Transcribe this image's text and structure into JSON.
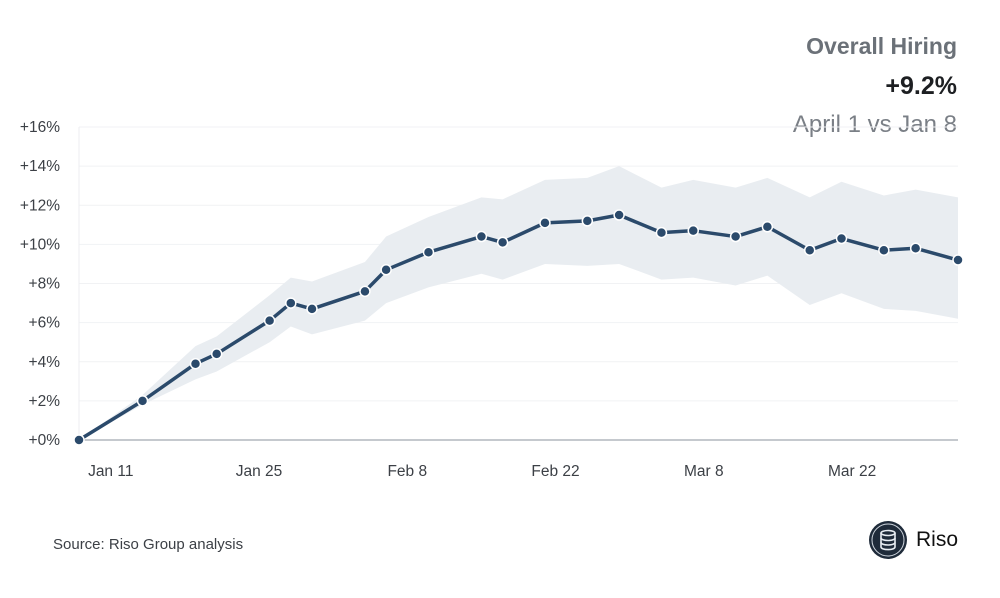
{
  "header": {
    "title": "Overall Hiring",
    "value": "+9.2%",
    "subtitle": "April 1 vs Jan 8"
  },
  "footer": {
    "source": "Source: Riso Group analysis",
    "brand": "Riso"
  },
  "chart_data": {
    "type": "line",
    "title": "Overall Hiring",
    "x": [
      "2021-01-08",
      "2021-01-14",
      "2021-01-19",
      "2021-01-21",
      "2021-01-26",
      "2021-01-28",
      "2021-01-30",
      "2021-02-04",
      "2021-02-06",
      "2021-02-10",
      "2021-02-15",
      "2021-02-17",
      "2021-02-21",
      "2021-02-25",
      "2021-02-28",
      "2021-03-04",
      "2021-03-07",
      "2021-03-11",
      "2021-03-14",
      "2021-03-18",
      "2021-03-21",
      "2021-03-25",
      "2021-03-28",
      "2021-04-01"
    ],
    "series": [
      {
        "values": [
          0,
          2.0,
          3.9,
          4.4,
          6.1,
          7.0,
          6.7,
          7.6,
          8.7,
          9.6,
          10.4,
          10.1,
          11.1,
          11.2,
          11.5,
          10.6,
          10.7,
          10.4,
          10.9,
          9.7,
          10.3,
          9.7,
          9.8,
          9.2
        ]
      }
    ],
    "band": {
      "upper": [
        0,
        2.3,
        4.8,
        5.3,
        7.4,
        8.3,
        8.1,
        9.1,
        10.4,
        11.4,
        12.4,
        12.3,
        13.3,
        13.4,
        14.0,
        12.9,
        13.3,
        12.9,
        13.4,
        12.4,
        13.2,
        12.5,
        12.8,
        12.4
      ],
      "lower": [
        0,
        1.8,
        3.1,
        3.5,
        5.0,
        5.8,
        5.4,
        6.1,
        7.0,
        7.8,
        8.5,
        8.2,
        9.0,
        8.9,
        9.0,
        8.2,
        8.3,
        7.9,
        8.4,
        6.9,
        7.5,
        6.7,
        6.6,
        6.2
      ]
    },
    "xticks": [
      {
        "date": "2021-01-11",
        "label": "Jan 11"
      },
      {
        "date": "2021-01-25",
        "label": "Jan 25"
      },
      {
        "date": "2021-02-08",
        "label": "Feb 8"
      },
      {
        "date": "2021-02-22",
        "label": "Feb 22"
      },
      {
        "date": "2021-03-08",
        "label": "Mar 8"
      },
      {
        "date": "2021-03-22",
        "label": "Mar 22"
      }
    ],
    "yticks": [
      {
        "v": 0,
        "label": "+0%"
      },
      {
        "v": 2,
        "label": "+2%"
      },
      {
        "v": 4,
        "label": "+4%"
      },
      {
        "v": 6,
        "label": "+6%"
      },
      {
        "v": 8,
        "label": "+8%"
      },
      {
        "v": 10,
        "label": "+10%"
      },
      {
        "v": 12,
        "label": "+12%"
      },
      {
        "v": 14,
        "label": "+14%"
      },
      {
        "v": 16,
        "label": "+16%"
      }
    ],
    "ylim": [
      0,
      16
    ],
    "grid": true,
    "colors": {
      "line": "#2b4a6b",
      "band": "#e9edf1",
      "grid": "#f1f2f4",
      "axis": "#c5c9ce"
    }
  }
}
